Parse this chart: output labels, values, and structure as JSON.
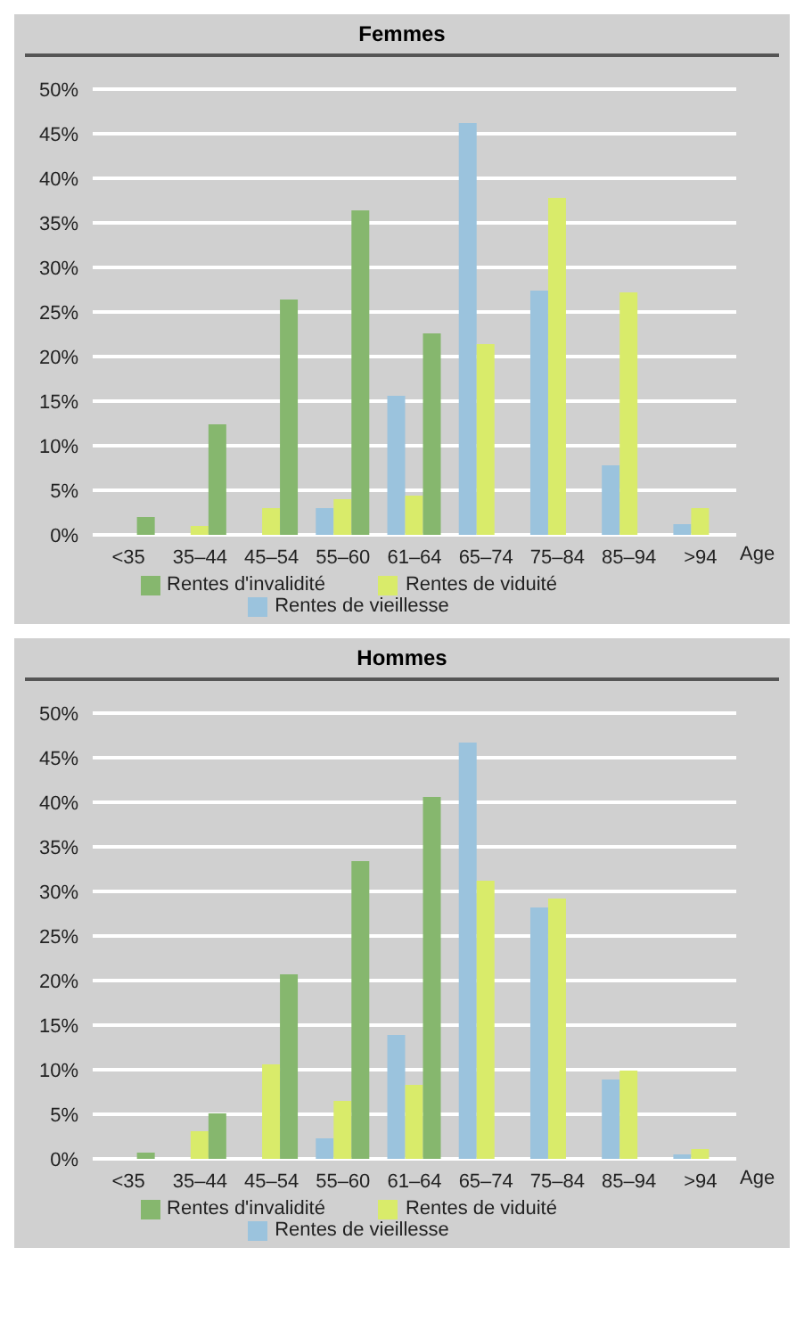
{
  "chart_data": [
    {
      "type": "bar",
      "title": "Femmes",
      "xlabel": "Age",
      "categories": [
        "<35",
        "35–44",
        "45–54",
        "55–60",
        "61–64",
        "65–74",
        "75–84",
        "85–94",
        ">94"
      ],
      "series": [
        {
          "name": "Rentes de vieillesse",
          "color": "#9bc3dd",
          "values": [
            null,
            null,
            null,
            3.0,
            15.6,
            46.2,
            27.4,
            7.8,
            1.2
          ]
        },
        {
          "name": "Rentes de viduité",
          "color": "#d9eb6a",
          "values": [
            null,
            1.0,
            3.0,
            4.0,
            4.4,
            21.4,
            37.8,
            27.2,
            3.0
          ]
        },
        {
          "name": "Rentes d'invalidité",
          "color": "#86b76e",
          "values": [
            2.0,
            12.4,
            26.4,
            36.4,
            22.6,
            null,
            null,
            null,
            null
          ]
        }
      ],
      "ylim": [
        0,
        50
      ],
      "yticks": [
        {
          "value": 0,
          "label": "0%"
        },
        {
          "value": 5,
          "label": "5%"
        },
        {
          "value": 10,
          "label": "10%"
        },
        {
          "value": 15,
          "label": "15%"
        },
        {
          "value": 20,
          "label": "20%"
        },
        {
          "value": 25,
          "label": "25%"
        },
        {
          "value": 30,
          "label": "30%"
        },
        {
          "value": 35,
          "label": "35%"
        },
        {
          "value": 40,
          "label": "40%"
        },
        {
          "value": 45,
          "label": "45%"
        },
        {
          "value": 50,
          "label": "50%"
        }
      ],
      "grid": "y",
      "legend": "bottom"
    },
    {
      "type": "bar",
      "title": "Hommes",
      "xlabel": "Age",
      "categories": [
        "<35",
        "35–44",
        "45–54",
        "55–60",
        "61–64",
        "65–74",
        "75–84",
        "85–94",
        ">94"
      ],
      "series": [
        {
          "name": "Rentes de vieillesse",
          "color": "#9bc3dd",
          "values": [
            null,
            null,
            null,
            2.3,
            13.9,
            46.7,
            28.2,
            8.9,
            0.5
          ]
        },
        {
          "name": "Rentes de viduité",
          "color": "#d9eb6a",
          "values": [
            null,
            3.1,
            10.6,
            6.5,
            8.3,
            31.2,
            29.2,
            9.9,
            1.1
          ]
        },
        {
          "name": "Rentes d'invalidité",
          "color": "#86b76e",
          "values": [
            0.7,
            5.1,
            20.7,
            33.4,
            40.6,
            null,
            null,
            null,
            null
          ]
        }
      ],
      "ylim": [
        0,
        50
      ],
      "yticks": [
        {
          "value": 0,
          "label": "0%"
        },
        {
          "value": 5,
          "label": "5%"
        },
        {
          "value": 10,
          "label": "10%"
        },
        {
          "value": 15,
          "label": "15%"
        },
        {
          "value": 20,
          "label": "20%"
        },
        {
          "value": 25,
          "label": "25%"
        },
        {
          "value": 30,
          "label": "30%"
        },
        {
          "value": 35,
          "label": "35%"
        },
        {
          "value": 40,
          "label": "40%"
        },
        {
          "value": 45,
          "label": "45%"
        },
        {
          "value": 50,
          "label": "50%"
        }
      ],
      "grid": "y",
      "legend": "bottom"
    }
  ]
}
